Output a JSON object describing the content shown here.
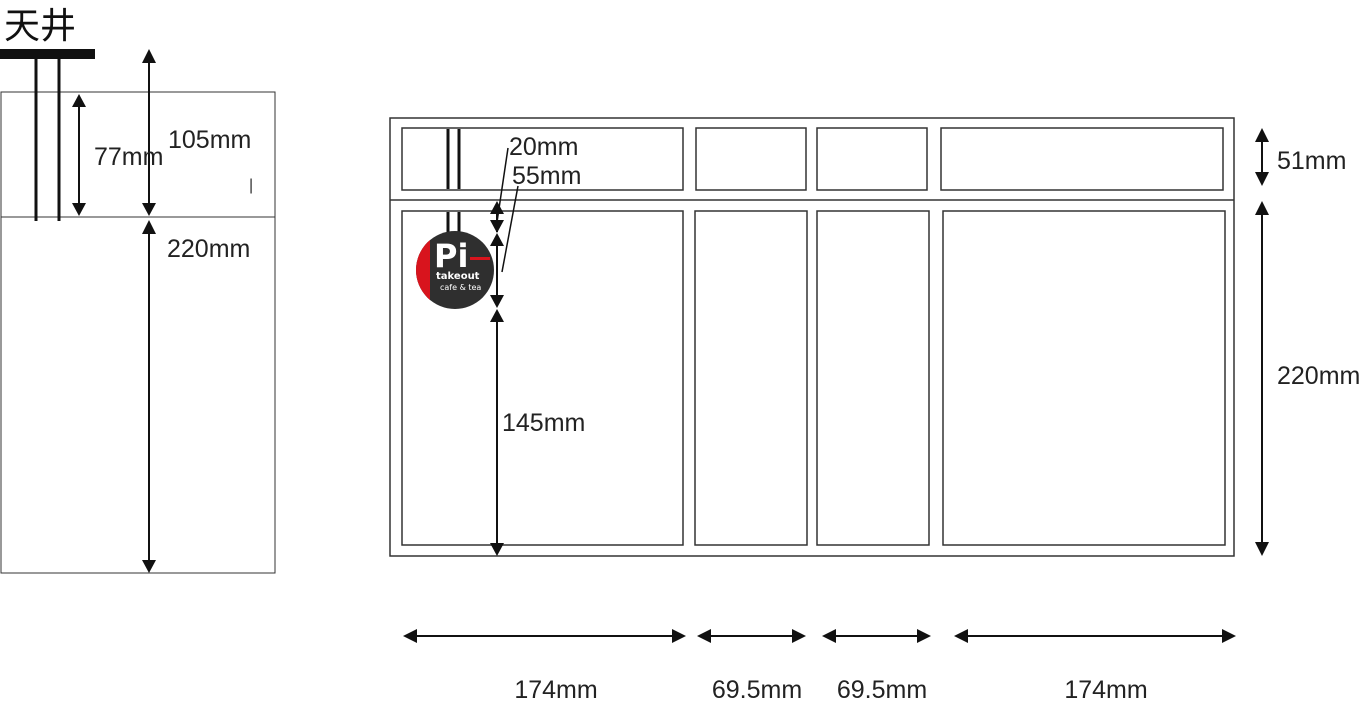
{
  "ceiling_label": "天井",
  "side_view": {
    "dim_77": "77mm",
    "dim_105": "105mm",
    "dim_220": "220mm",
    "stray_mark": "|"
  },
  "front_view": {
    "dim_20": "20mm",
    "dim_55": "55mm",
    "dim_51": "51mm",
    "dim_220": "220mm",
    "dim_145": "145mm",
    "widths": [
      "174mm",
      "69.5mm",
      "69.5mm",
      "174mm"
    ]
  },
  "logo": {
    "letters": "Pi",
    "line1": "takeout",
    "line2": "cafe & tea",
    "colors": {
      "dark": "#2f2f2f",
      "red": "#d8141d",
      "white": "#ffffff"
    }
  },
  "colors": {
    "line": "#1a1a1a",
    "text": "#222222"
  }
}
